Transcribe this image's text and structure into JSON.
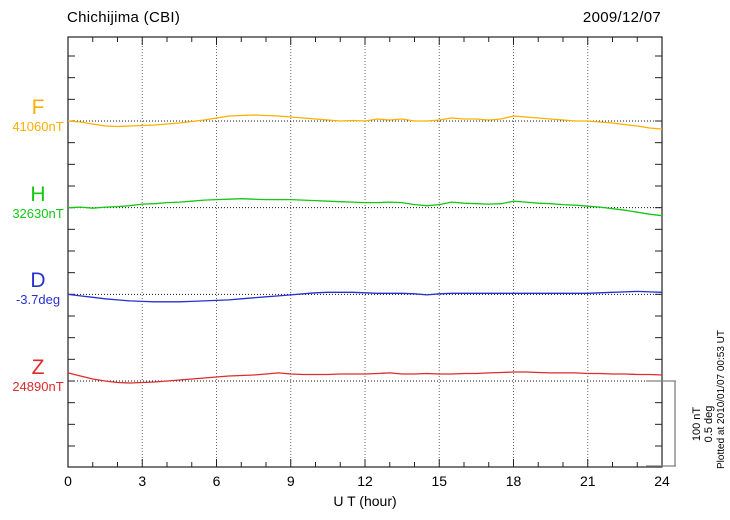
{
  "header": {
    "title": "Chichijima (CBI)",
    "date": "2009/12/07"
  },
  "footer": {
    "plotted_at": "Plotted at 2010/01/07 00:53 UT"
  },
  "chart_data": {
    "type": "line",
    "title": "Chichijima (CBI)",
    "date": "2009/12/07",
    "xlabel": "U T (hour)",
    "xlim": [
      0,
      24
    ],
    "x_ticks": [
      0,
      3,
      6,
      9,
      12,
      15,
      18,
      21,
      24
    ],
    "x_minor_step_hours": 1,
    "grid": "dotted vertical lines every 3 h; dotted horizontal baseline per component",
    "legend_position": "left-of-plot component labels",
    "scale_bar": {
      "nT_label": "100 nT",
      "deg_label": "0.5 deg"
    },
    "x_hours": [
      0,
      0.5,
      1,
      1.5,
      2,
      2.5,
      3,
      3.5,
      4,
      4.5,
      5,
      5.5,
      6,
      6.5,
      7,
      7.5,
      8,
      8.5,
      9,
      9.5,
      10,
      10.5,
      11,
      11.5,
      12,
      12.5,
      13,
      13.5,
      14,
      14.5,
      15,
      15.5,
      16,
      16.5,
      17,
      17.5,
      18,
      18.5,
      19,
      19.5,
      20,
      20.5,
      21,
      21.5,
      22,
      22.5,
      23,
      23.5,
      24
    ],
    "series": [
      {
        "name": "F",
        "unit": "nT",
        "baseline": 41060,
        "baseline_label": "41060nT",
        "color": "#FFAF00",
        "values": [
          41060.0,
          41058.8,
          41056.5,
          41054.2,
          41053.6,
          41054.2,
          41054.8,
          41055.4,
          41056.5,
          41057.7,
          41059.4,
          41061.2,
          41063.5,
          41065.8,
          41066.4,
          41066.9,
          41066.4,
          41065.8,
          41064.6,
          41063.5,
          41062.3,
          41061.2,
          41060.0,
          41060.6,
          41060.0,
          41062.3,
          41061.2,
          41062.3,
          41060.0,
          41060.0,
          41061.2,
          41063.5,
          41062.3,
          41062.3,
          41061.2,
          41062.3,
          41065.8,
          41064.6,
          41063.5,
          41062.3,
          41061.2,
          41060.0,
          41060.0,
          41058.8,
          41057.7,
          41055.9,
          41054.2,
          41051.9,
          41050.7
        ]
      },
      {
        "name": "H",
        "unit": "nT",
        "baseline": 32630,
        "baseline_label": "32630nT",
        "color": "#14C814",
        "values": [
          32630.0,
          32630.6,
          32629.4,
          32630.6,
          32631.2,
          32632.3,
          32634.1,
          32634.6,
          32635.8,
          32636.4,
          32637.5,
          32638.7,
          32639.3,
          32639.8,
          32640.4,
          32639.8,
          32639.3,
          32639.3,
          32639.3,
          32638.7,
          32638.1,
          32637.5,
          32636.9,
          32636.4,
          32635.8,
          32635.8,
          32636.4,
          32635.8,
          32633.5,
          32632.3,
          32633.5,
          32636.4,
          32635.2,
          32634.6,
          32634.1,
          32634.6,
          32637.5,
          32636.4,
          32635.2,
          32634.6,
          32633.5,
          32632.9,
          32631.7,
          32630.6,
          32628.8,
          32627.1,
          32624.8,
          32622.5,
          32620.7
        ]
      },
      {
        "name": "D",
        "unit": "deg",
        "baseline": -3.7,
        "baseline_label": "-3.7deg",
        "color": "#2830D0",
        "values": [
          -3.7,
          -3.709,
          -3.717,
          -3.726,
          -3.732,
          -3.738,
          -3.741,
          -3.743,
          -3.743,
          -3.743,
          -3.741,
          -3.738,
          -3.735,
          -3.732,
          -3.726,
          -3.72,
          -3.714,
          -3.709,
          -3.703,
          -3.697,
          -3.691,
          -3.688,
          -3.688,
          -3.688,
          -3.691,
          -3.694,
          -3.694,
          -3.694,
          -3.697,
          -3.703,
          -3.697,
          -3.694,
          -3.694,
          -3.694,
          -3.694,
          -3.694,
          -3.694,
          -3.694,
          -3.694,
          -3.694,
          -3.694,
          -3.694,
          -3.694,
          -3.691,
          -3.688,
          -3.686,
          -3.683,
          -3.686,
          -3.688
        ]
      },
      {
        "name": "Z",
        "unit": "nT",
        "baseline": 24890,
        "baseline_label": "24890nT",
        "color": "#DD2C2C",
        "values": [
          24899.3,
          24895.8,
          24892.3,
          24890.0,
          24888.3,
          24887.7,
          24888.3,
          24888.8,
          24890.0,
          24891.2,
          24892.3,
          24893.5,
          24894.6,
          24895.8,
          24896.4,
          24896.9,
          24898.1,
          24899.3,
          24898.1,
          24897.5,
          24897.5,
          24897.5,
          24898.1,
          24898.1,
          24898.1,
          24898.7,
          24899.3,
          24898.1,
          24898.1,
          24898.7,
          24898.1,
          24898.1,
          24898.7,
          24898.7,
          24899.3,
          24899.8,
          24900.4,
          24900.4,
          24899.8,
          24899.3,
          24899.3,
          24899.3,
          24898.7,
          24898.7,
          24898.1,
          24898.1,
          24897.5,
          24897.5,
          24896.9
        ]
      }
    ]
  }
}
